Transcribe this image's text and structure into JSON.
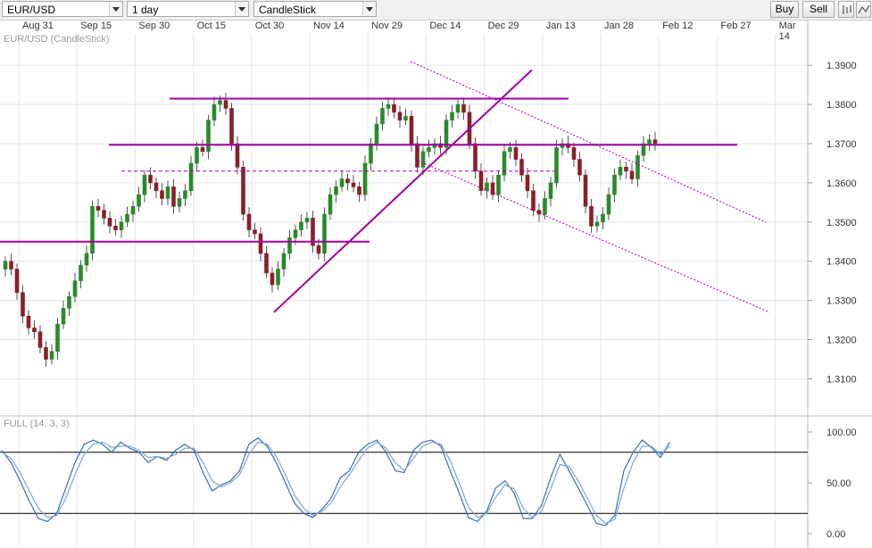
{
  "toolbar": {
    "symbol": "EUR/USD",
    "interval": "1 day",
    "chart_style": "CandleStick",
    "buy_label": "Buy",
    "sell_label": "Sell"
  },
  "colors": {
    "up": "#2a8a2a",
    "down": "#8a1f2a",
    "line": "#a000a0",
    "stoch_k": "#3a6fb0",
    "stoch_d": "#7aa6d6"
  },
  "main_legend": "EUR/USD (CandleStick)",
  "stoch_legend": "FULL (14, 3, 3)",
  "chart_data": [
    {
      "type": "candlestick",
      "title": "EUR/USD (CandleStick)",
      "x_ticks": [
        "Aug 31",
        "Sep 15",
        "Sep 30",
        "Oct 15",
        "Oct 30",
        "Nov 14",
        "Nov 29",
        "Dec 14",
        "Dec 29",
        "Jan 13",
        "Jan 28",
        "Feb 12",
        "Feb 27",
        "Mar 14"
      ],
      "y_ticks": [
        "1.3100",
        "1.3200",
        "1.3300",
        "1.3400",
        "1.3500",
        "1.3600",
        "1.3700",
        "1.3800",
        "1.3900"
      ],
      "ylim": [
        1.301,
        1.398
      ],
      "grid": true,
      "closes": [
        1.34,
        1.338,
        1.332,
        1.326,
        1.323,
        1.322,
        1.318,
        1.315,
        1.317,
        1.324,
        1.328,
        1.331,
        1.335,
        1.339,
        1.342,
        1.354,
        1.353,
        1.351,
        1.349,
        1.348,
        1.35,
        1.352,
        1.354,
        1.357,
        1.362,
        1.36,
        1.358,
        1.356,
        1.359,
        1.354,
        1.356,
        1.358,
        1.365,
        1.369,
        1.368,
        1.376,
        1.38,
        1.381,
        1.379,
        1.37,
        1.364,
        1.352,
        1.348,
        1.347,
        1.342,
        1.337,
        1.334,
        1.338,
        1.342,
        1.346,
        1.348,
        1.35,
        1.351,
        1.344,
        1.342,
        1.352,
        1.357,
        1.359,
        1.361,
        1.36,
        1.359,
        1.357,
        1.365,
        1.37,
        1.375,
        1.379,
        1.38,
        1.378,
        1.376,
        1.377,
        1.37,
        1.364,
        1.368,
        1.369,
        1.37,
        1.369,
        1.376,
        1.378,
        1.38,
        1.378,
        1.37,
        1.363,
        1.358,
        1.36,
        1.357,
        1.362,
        1.368,
        1.369,
        1.366,
        1.362,
        1.358,
        1.353,
        1.352,
        1.356,
        1.36,
        1.369,
        1.37,
        1.369,
        1.366,
        1.362,
        1.354,
        1.349,
        1.35,
        1.352,
        1.357,
        1.362,
        1.364,
        1.363,
        1.361,
        1.367,
        1.37,
        1.371,
        1.37
      ],
      "horizontal_lines": [
        1.3815,
        1.3697,
        1.345
      ],
      "dashed_line": 1.363
    },
    {
      "type": "line",
      "title": "FULL (14, 3, 3)",
      "y_ticks": [
        "0.00",
        "50.00",
        "100.00"
      ],
      "ylim": [
        0,
        100
      ],
      "levels": [
        80,
        20
      ],
      "series": [
        {
          "values": [
            82,
            70,
            52,
            32,
            15,
            12,
            20,
            45,
            70,
            88,
            92,
            88,
            80,
            90,
            84,
            80,
            70,
            76,
            72,
            82,
            88,
            82,
            60,
            42,
            48,
            52,
            62,
            88,
            94,
            86,
            70,
            50,
            30,
            20,
            16,
            24,
            35,
            55,
            62,
            80,
            88,
            92,
            80,
            62,
            60,
            82,
            90,
            92,
            86,
            62,
            40,
            16,
            12,
            22,
            45,
            52,
            40,
            15,
            15,
            28,
            55,
            78,
            62,
            45,
            28,
            10,
            8,
            18,
            62,
            80,
            92,
            85,
            75,
            90
          ]
        },
        {
          "values": [
            80,
            74,
            60,
            42,
            25,
            16,
            18,
            35,
            58,
            78,
            88,
            90,
            85,
            86,
            86,
            82,
            75,
            76,
            74,
            78,
            84,
            84,
            70,
            52,
            46,
            50,
            58,
            78,
            90,
            88,
            76,
            58,
            38,
            25,
            18,
            22,
            30,
            46,
            58,
            72,
            84,
            90,
            84,
            70,
            62,
            74,
            86,
            90,
            88,
            72,
            50,
            26,
            16,
            20,
            36,
            48,
            44,
            25,
            16,
            22,
            44,
            68,
            66,
            52,
            35,
            18,
            10,
            14,
            45,
            70,
            86,
            86,
            78,
            86
          ]
        }
      ]
    }
  ]
}
